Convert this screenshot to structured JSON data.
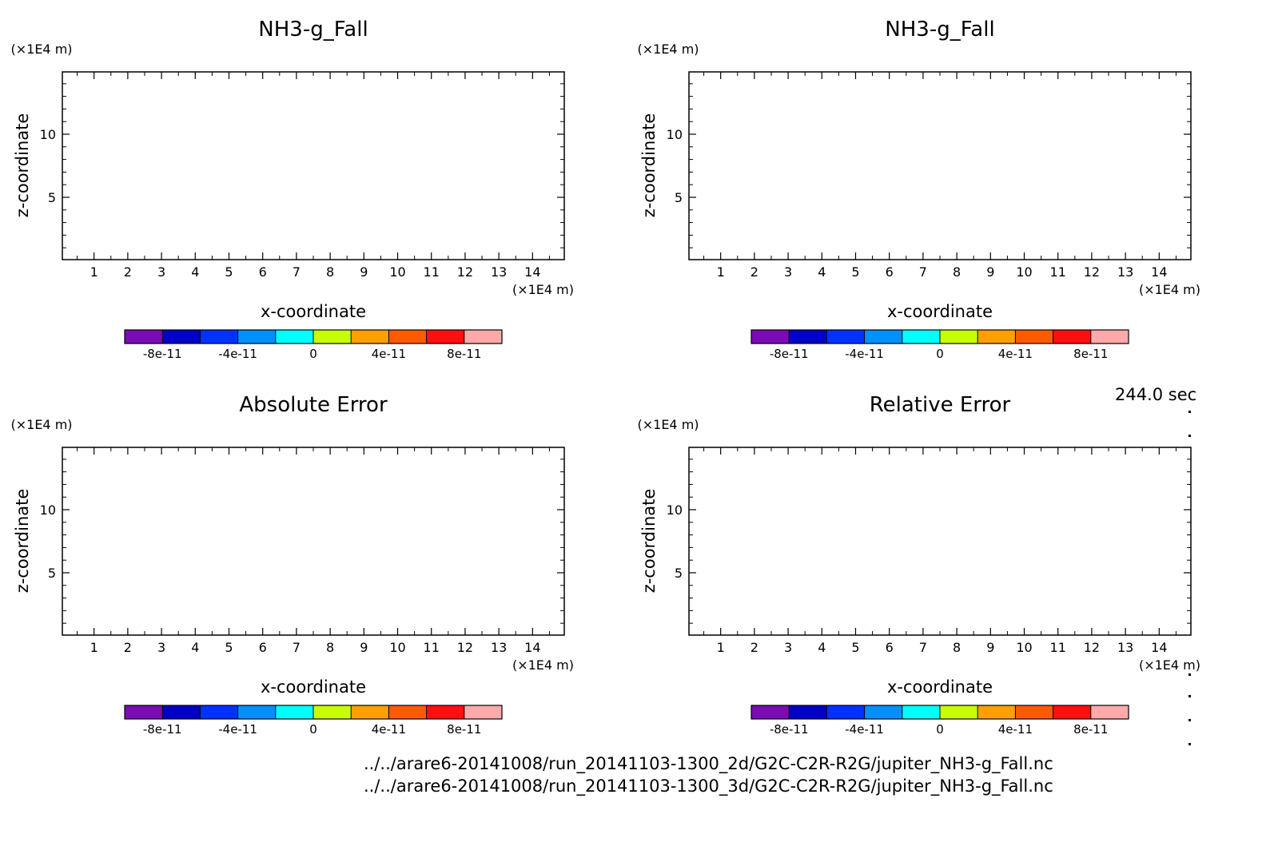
{
  "page": {
    "time_label": "244.0 sec",
    "file_paths": [
      "../../arare6-20141008/run_20141103-1300_2d/G2C-C2R-R2G/jupiter_NH3-g_Fall.nc",
      "../../arare6-20141008/run_20141103-1300_3d/G2C-C2R-R2G/jupiter_NH3-g_Fall.nc"
    ]
  },
  "colorbar": {
    "colors": [
      "#7b0bb4",
      "#0000c8",
      "#0032ff",
      "#0091ff",
      "#00ffff",
      "#c8ff00",
      "#ffa000",
      "#ff5a00",
      "#ff1010",
      "#ffaaaa"
    ],
    "tick_values": [
      -8e-11,
      -4e-11,
      0,
      4e-11,
      8e-11
    ],
    "tick_labels": [
      "-8e-11",
      "-4e-11",
      "0",
      "4e-11",
      "8e-11"
    ],
    "range": [
      -1e-10,
      1e-10
    ]
  },
  "chart_data": [
    {
      "type": "heatmap",
      "title": "NH3-g_Fall",
      "xlabel": "x-coordinate",
      "ylabel": "z-coordinate",
      "x_unit": "(×1E4 m)",
      "y_unit": "(×1E4 m)",
      "xlim": [
        0.06,
        14.94
      ],
      "ylim": [
        0.06,
        14.94
      ],
      "x_ticks": [
        1,
        2,
        3,
        4,
        5,
        6,
        7,
        8,
        9,
        10,
        11,
        12,
        13,
        14
      ],
      "y_ticks": [
        5,
        10
      ],
      "values": []
    },
    {
      "type": "heatmap",
      "title": "NH3-g_Fall",
      "xlabel": "x-coordinate",
      "ylabel": "z-coordinate",
      "x_unit": "(×1E4 m)",
      "y_unit": "(×1E4 m)",
      "xlim": [
        0.06,
        14.94
      ],
      "ylim": [
        0.06,
        14.94
      ],
      "x_ticks": [
        1,
        2,
        3,
        4,
        5,
        6,
        7,
        8,
        9,
        10,
        11,
        12,
        13,
        14
      ],
      "y_ticks": [
        5,
        10
      ],
      "values": []
    },
    {
      "type": "heatmap",
      "title": "Absolute Error",
      "xlabel": "x-coordinate",
      "ylabel": "z-coordinate",
      "x_unit": "(×1E4 m)",
      "y_unit": "(×1E4 m)",
      "xlim": [
        0.06,
        14.94
      ],
      "ylim": [
        0.06,
        14.94
      ],
      "x_ticks": [
        1,
        2,
        3,
        4,
        5,
        6,
        7,
        8,
        9,
        10,
        11,
        12,
        13,
        14
      ],
      "y_ticks": [
        5,
        10
      ],
      "values": []
    },
    {
      "type": "heatmap",
      "title": "Relative Error",
      "xlabel": "x-coordinate",
      "ylabel": "z-coordinate",
      "x_unit": "(×1E4 m)",
      "y_unit": "(×1E4 m)",
      "xlim": [
        0.06,
        14.94
      ],
      "ylim": [
        0.06,
        14.94
      ],
      "x_ticks": [
        1,
        2,
        3,
        4,
        5,
        6,
        7,
        8,
        9,
        10,
        11,
        12,
        13,
        14
      ],
      "y_ticks": [
        5,
        10
      ],
      "values": []
    }
  ]
}
